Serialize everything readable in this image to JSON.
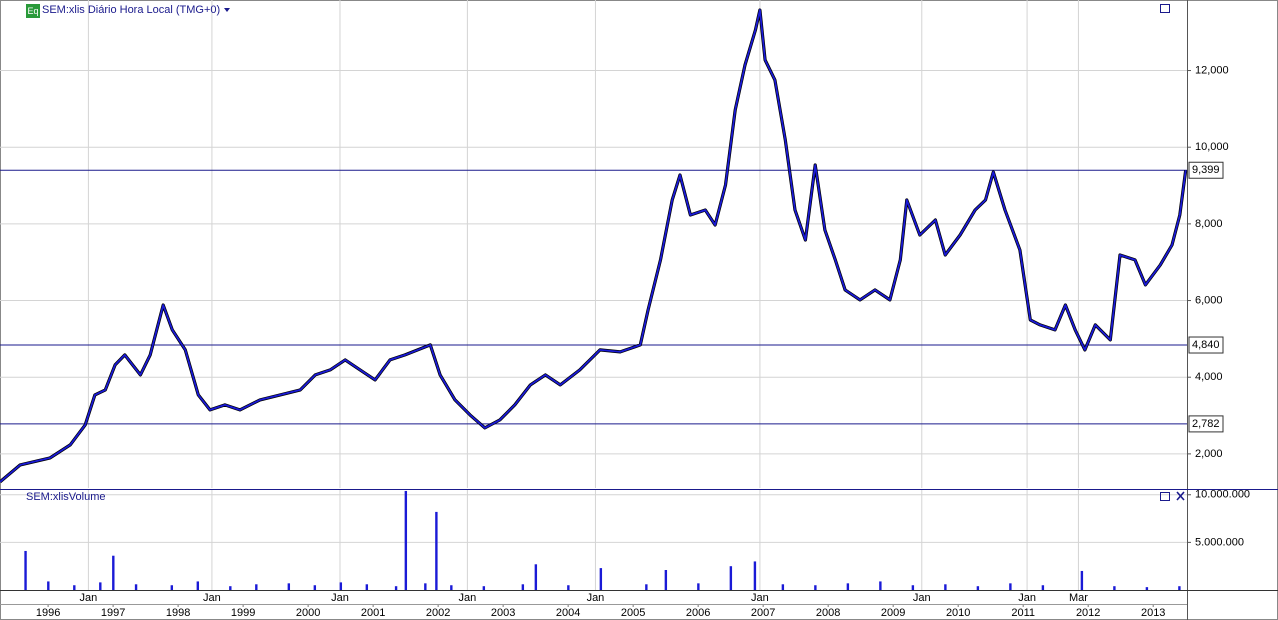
{
  "chart_data": [
    {
      "type": "line",
      "badge": "Eq",
      "title": "SEM:xlis Diário Hora Local (TMG+0)",
      "x": [
        1995.76,
        1996.07,
        1996.53,
        1996.84,
        1997.07,
        1997.22,
        1997.38,
        1997.53,
        1997.68,
        1997.92,
        1998.07,
        1998.27,
        1998.41,
        1998.61,
        1998.81,
        1998.99,
        1999.22,
        1999.45,
        1999.76,
        2000.07,
        2000.38,
        2000.61,
        2000.84,
        2001.07,
        2001.3,
        2001.53,
        2001.76,
        2001.99,
        2002.38,
        2002.53,
        2002.76,
        2002.99,
        2003.22,
        2003.45,
        2003.68,
        2003.92,
        2004.15,
        2004.38,
        2004.68,
        2004.99,
        2005.3,
        2005.61,
        2005.73,
        2005.92,
        2006.1,
        2006.22,
        2006.38,
        2006.61,
        2006.76,
        2006.92,
        2007.07,
        2007.22,
        2007.38,
        2007.45,
        2007.53,
        2007.68,
        2007.84,
        2007.99,
        2008.15,
        2008.3,
        2008.45,
        2008.61,
        2008.76,
        2008.99,
        2009.22,
        2009.45,
        2009.61,
        2009.71,
        2009.91,
        2010.15,
        2010.3,
        2010.53,
        2010.76,
        2010.92,
        2011.04,
        2011.22,
        2011.45,
        2011.61,
        2011.76,
        2011.99,
        2012.15,
        2012.3,
        2012.45,
        2012.61,
        2012.84,
        2012.99,
        2013.22,
        2013.38,
        2013.61,
        2013.79,
        2013.91,
        2014.0
      ],
      "values": [
        1270,
        1713,
        1896,
        2235,
        2756,
        3538,
        3669,
        4320,
        4581,
        4060,
        4581,
        5885,
        5233,
        4712,
        3538,
        3147,
        3278,
        3147,
        3408,
        3538,
        3669,
        4060,
        4190,
        4451,
        4190,
        3930,
        4451,
        4581,
        4842,
        4060,
        3408,
        3017,
        2678,
        2887,
        3278,
        3799,
        4060,
        3799,
        4190,
        4712,
        4660,
        4842,
        5755,
        7059,
        8623,
        9275,
        8232,
        8363,
        7971,
        9014,
        10970,
        12144,
        13056,
        13578,
        12274,
        11752,
        10188,
        8363,
        7580,
        9536,
        7841,
        7059,
        6277,
        6016,
        6277,
        6016,
        7059,
        8623,
        7711,
        8102,
        7189,
        7711,
        8363,
        8623,
        9353,
        8363,
        7319,
        5494,
        5364,
        5233,
        5885,
        5233,
        4712,
        5364,
        4973,
        7189,
        7059,
        6407,
        6929,
        7450,
        8232,
        9399
      ],
      "color": "#1a1ad6",
      "xlim": [
        1995.76,
        2014.02
      ],
      "ylim": [
        1110,
        13840
      ],
      "yticks": [
        {
          "value": 2000,
          "label": "2,000"
        },
        {
          "value": 4000,
          "label": "4,000"
        },
        {
          "value": 6000,
          "label": "6,000"
        },
        {
          "value": 8000,
          "label": "8,000"
        },
        {
          "value": 10000,
          "label": "10,000"
        },
        {
          "value": 12000,
          "label": "12,000"
        }
      ],
      "levels": [
        {
          "value": 9399,
          "label": "9,399"
        },
        {
          "value": 4840,
          "label": "4,840"
        },
        {
          "value": 2782,
          "label": "2,782"
        }
      ],
      "grid": true
    },
    {
      "type": "bar",
      "title": "SEM:xlisVolume",
      "x": [
        1996.15,
        1996.5,
        1996.9,
        1997.3,
        1997.5,
        1997.85,
        1998.4,
        1998.8,
        1999.3,
        1999.7,
        2000.2,
        2000.6,
        2001.0,
        2001.4,
        2001.85,
        2002.0,
        2002.3,
        2002.47,
        2002.7,
        2003.2,
        2003.8,
        2004.0,
        2004.5,
        2005.0,
        2005.7,
        2006.0,
        2006.5,
        2007.0,
        2007.37,
        2007.8,
        2008.3,
        2008.8,
        2009.3,
        2009.8,
        2010.3,
        2010.8,
        2011.3,
        2011.8,
        2012.4,
        2012.9,
        2013.4,
        2013.9
      ],
      "values": [
        4100000,
        900000,
        500000,
        800000,
        3600000,
        600000,
        500000,
        900000,
        400000,
        600000,
        700000,
        500000,
        800000,
        600000,
        400000,
        10400000,
        700000,
        8200000,
        500000,
        400000,
        600000,
        2700000,
        500000,
        2300000,
        600000,
        2100000,
        700000,
        2500000,
        3000000,
        600000,
        500000,
        700000,
        900000,
        500000,
        600000,
        400000,
        700000,
        500000,
        2000000,
        400000,
        300000,
        400000
      ],
      "color": "#1a1ad6",
      "xlim": [
        1995.76,
        2014.02
      ],
      "ylim": [
        0,
        10500000
      ],
      "yticks": [
        {
          "value": 5000000,
          "label": "5.000.000"
        },
        {
          "value": 10000000,
          "label": "10.000.000"
        }
      ],
      "month_ticks": [
        {
          "value": 1997.12,
          "label": "Jan"
        },
        {
          "value": 1999.02,
          "label": "Jan"
        },
        {
          "value": 2000.99,
          "label": "Jan"
        },
        {
          "value": 2002.95,
          "label": "Jan"
        },
        {
          "value": 2004.92,
          "label": "Jan"
        },
        {
          "value": 2007.45,
          "label": "Jan"
        },
        {
          "value": 2009.94,
          "label": "Jan"
        },
        {
          "value": 2011.56,
          "label": "Jan"
        },
        {
          "value": 2012.35,
          "label": "Mar"
        }
      ],
      "xticks": [
        {
          "value": 1996.5,
          "label": "1996"
        },
        {
          "value": 1997.5,
          "label": "1997"
        },
        {
          "value": 1998.5,
          "label": "1998"
        },
        {
          "value": 1999.5,
          "label": "1999"
        },
        {
          "value": 2000.5,
          "label": "2000"
        },
        {
          "value": 2001.5,
          "label": "2001"
        },
        {
          "value": 2002.5,
          "label": "2002"
        },
        {
          "value": 2003.5,
          "label": "2003"
        },
        {
          "value": 2004.5,
          "label": "2004"
        },
        {
          "value": 2005.5,
          "label": "2005"
        },
        {
          "value": 2006.5,
          "label": "2006"
        },
        {
          "value": 2007.5,
          "label": "2007"
        },
        {
          "value": 2008.5,
          "label": "2008"
        },
        {
          "value": 2009.5,
          "label": "2009"
        },
        {
          "value": 2010.5,
          "label": "2010"
        },
        {
          "value": 2011.5,
          "label": "2011"
        },
        {
          "value": 2012.5,
          "label": "2012"
        },
        {
          "value": 2013.5,
          "label": "2013"
        }
      ],
      "grid": true
    }
  ]
}
